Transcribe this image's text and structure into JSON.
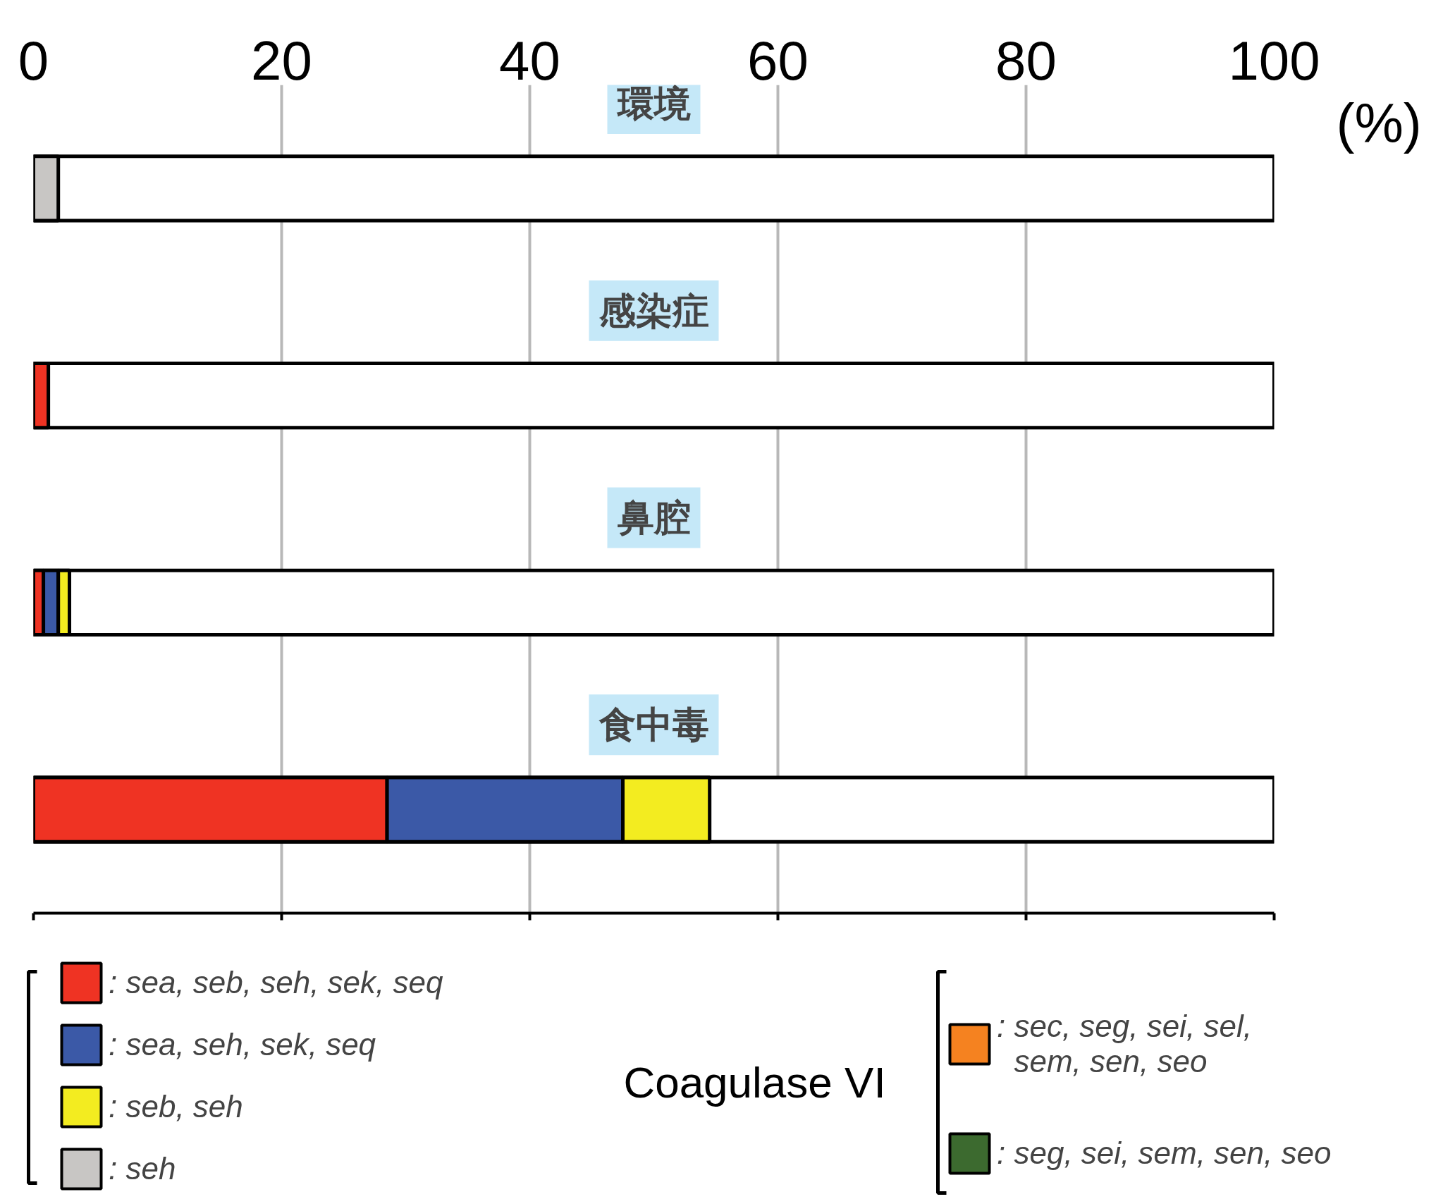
{
  "chart_data": {
    "type": "bar",
    "orientation": "horizontal",
    "stacked": true,
    "categories": [
      "環境",
      "感染症",
      "鼻腔",
      "食中毒"
    ],
    "series": [
      {
        "name": ": sea, seb, seh, sek, seq",
        "color": "#ef3323",
        "values": [
          null,
          1.2,
          0.8,
          28.5
        ]
      },
      {
        "name": ": sea, seh, sek, seq",
        "color": "#3b59a7",
        "values": [
          null,
          null,
          1.2,
          19
        ]
      },
      {
        "name": ": seb, seh",
        "color": "#f3ec20",
        "values": [
          null,
          null,
          0.9,
          7
        ]
      },
      {
        "name": ": seh",
        "color": "#c8c6c4",
        "values": [
          2,
          null,
          null,
          null
        ]
      },
      {
        "name": ": sec, seg, sei, sel, sem, sen, seo",
        "color": "#f58220",
        "values": [
          null,
          null,
          null,
          null
        ]
      },
      {
        "name": ": seg, sei, sem, sen, seo",
        "color": "#3c6a2f",
        "values": [
          null,
          null,
          null,
          null
        ]
      }
    ],
    "xlabel": "(%)",
    "xlim": [
      0,
      100
    ],
    "xticks": [
      0,
      20,
      40,
      60,
      80,
      100
    ],
    "grid": "x",
    "tick_labels": "x",
    "legend": "bottom",
    "annotations": [
      "Coagulase VI"
    ]
  }
}
